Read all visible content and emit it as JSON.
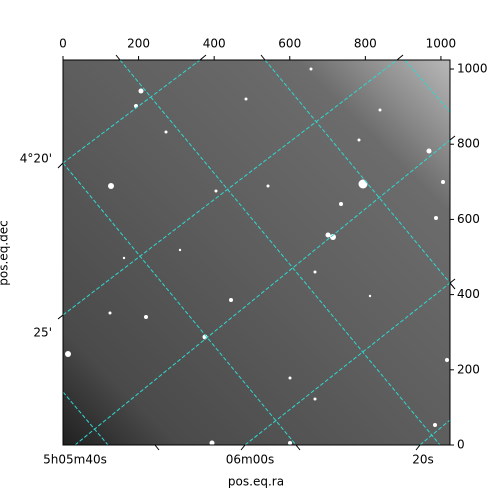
{
  "chart_data": {
    "type": "image",
    "x_label": "pos.eq.ra",
    "y_label": "pos.eq.dec",
    "xlim": [
      0,
      1024
    ],
    "ylim": [
      0,
      1024
    ],
    "xticks": [
      0,
      200,
      400,
      600,
      800,
      1000
    ],
    "yticks": [
      0,
      200,
      400,
      600,
      800,
      1000
    ],
    "ra_labels": [
      "5h05m40s",
      "06m00s",
      "20s"
    ],
    "dec_labels": [
      "4°20'",
      "25'"
    ],
    "grid_color": "#2fd8d0"
  }
}
